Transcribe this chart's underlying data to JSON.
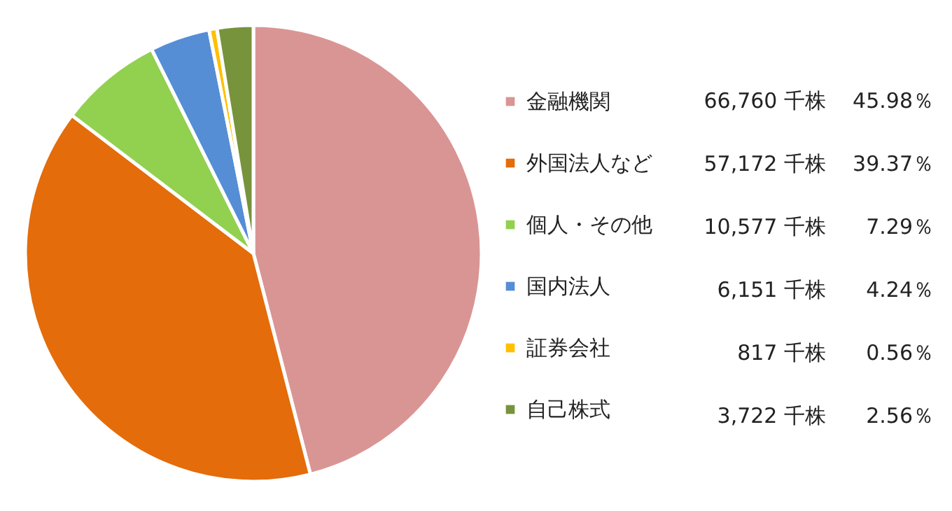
{
  "chart_data": {
    "type": "pie",
    "categories": [
      "金融機関",
      "外国法人など",
      "個人・その他",
      "国内法人",
      "証券会社",
      "自己株式"
    ],
    "values": [
      45.98,
      39.37,
      7.29,
      4.24,
      0.56,
      2.56
    ],
    "colors": [
      "#d99594",
      "#e46c0a",
      "#92d050",
      "#558ed5",
      "#ffc000",
      "#77933c"
    ],
    "value_labels": [
      "66,760 千株 45.98％",
      "57,172 千株 39.37％",
      "10,577 千株 7.29％",
      "6,151 千株 4.24％",
      "817 千株 0.56％",
      "3,722 千株 2.56％"
    ],
    "legend": "right"
  }
}
